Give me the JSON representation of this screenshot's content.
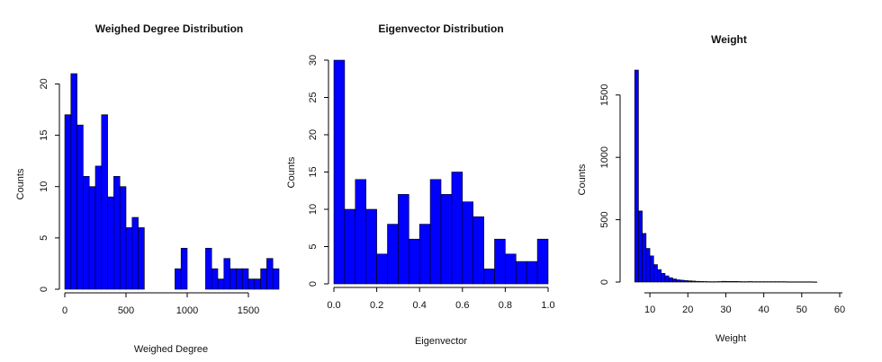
{
  "colors": {
    "bar_fill": "#0000ff",
    "bar_stroke": "#000000",
    "axis": "#000000"
  },
  "chart_data": [
    {
      "type": "bar",
      "title": "Weighed Degree Distribution",
      "xlabel": "Weighed Degree",
      "ylabel": "Counts",
      "xlim": [
        0,
        1750
      ],
      "ylim": [
        0,
        21
      ],
      "x_ticks": [
        0,
        500,
        1000,
        1500
      ],
      "y_ticks": [
        0,
        5,
        10,
        15,
        20
      ],
      "x_tick_labels": [
        "0",
        "500",
        "1000",
        "1500"
      ],
      "y_tick_labels": [
        "0",
        "5",
        "10",
        "15",
        "20"
      ],
      "bin_width": 50,
      "bins_start": 0,
      "values": [
        17,
        21,
        16,
        11,
        10,
        12,
        17,
        9,
        11,
        10,
        6,
        7,
        6,
        0,
        0,
        0,
        0,
        0,
        2,
        4,
        0,
        0,
        0,
        4,
        2,
        1,
        3,
        2,
        2,
        2,
        1,
        1,
        2,
        3,
        2,
        0,
        0,
        0,
        0,
        0,
        0,
        0,
        0,
        0,
        0
      ]
    },
    {
      "type": "bar",
      "title": "Eigenvector Distribution",
      "xlabel": "Eigenvector",
      "ylabel": "Counts",
      "xlim": [
        0,
        1.0
      ],
      "ylim": [
        0,
        30
      ],
      "x_ticks": [
        0.0,
        0.2,
        0.4,
        0.6,
        0.8,
        1.0
      ],
      "y_ticks": [
        0,
        5,
        10,
        15,
        20,
        25,
        30
      ],
      "x_tick_labels": [
        "0.0",
        "0.2",
        "0.4",
        "0.6",
        "0.8",
        "1.0"
      ],
      "y_tick_labels": [
        "0",
        "5",
        "10",
        "15",
        "20",
        "25",
        "30"
      ],
      "bin_width": 0.05,
      "bins_start": 0,
      "values": [
        30,
        10,
        14,
        10,
        4,
        8,
        12,
        6,
        8,
        14,
        12,
        15,
        11,
        9,
        2,
        6,
        4,
        3,
        3,
        6
      ]
    },
    {
      "type": "bar",
      "title": "Weight",
      "xlabel": "Weight",
      "ylabel": "Counts",
      "xlim": [
        5,
        60
      ],
      "ylim": [
        0,
        1700
      ],
      "x_ticks": [
        10,
        20,
        30,
        40,
        50,
        60
      ],
      "y_ticks": [
        0,
        500,
        1000,
        1500
      ],
      "x_tick_labels": [
        "10",
        "20",
        "30",
        "40",
        "50",
        "60"
      ],
      "y_tick_labels": [
        "0",
        "500",
        "1000",
        "1500"
      ],
      "bin_width": 1,
      "bins_start": 6,
      "values": [
        1700,
        570,
        390,
        270,
        210,
        140,
        100,
        70,
        50,
        35,
        25,
        18,
        15,
        12,
        10,
        8,
        6,
        5,
        4,
        3,
        3,
        3,
        4,
        6,
        5,
        5,
        5,
        4,
        3,
        3,
        4,
        3,
        3,
        3,
        3,
        3,
        3,
        3,
        3,
        3,
        2,
        2,
        2,
        2,
        2,
        2,
        2,
        1
      ]
    }
  ]
}
